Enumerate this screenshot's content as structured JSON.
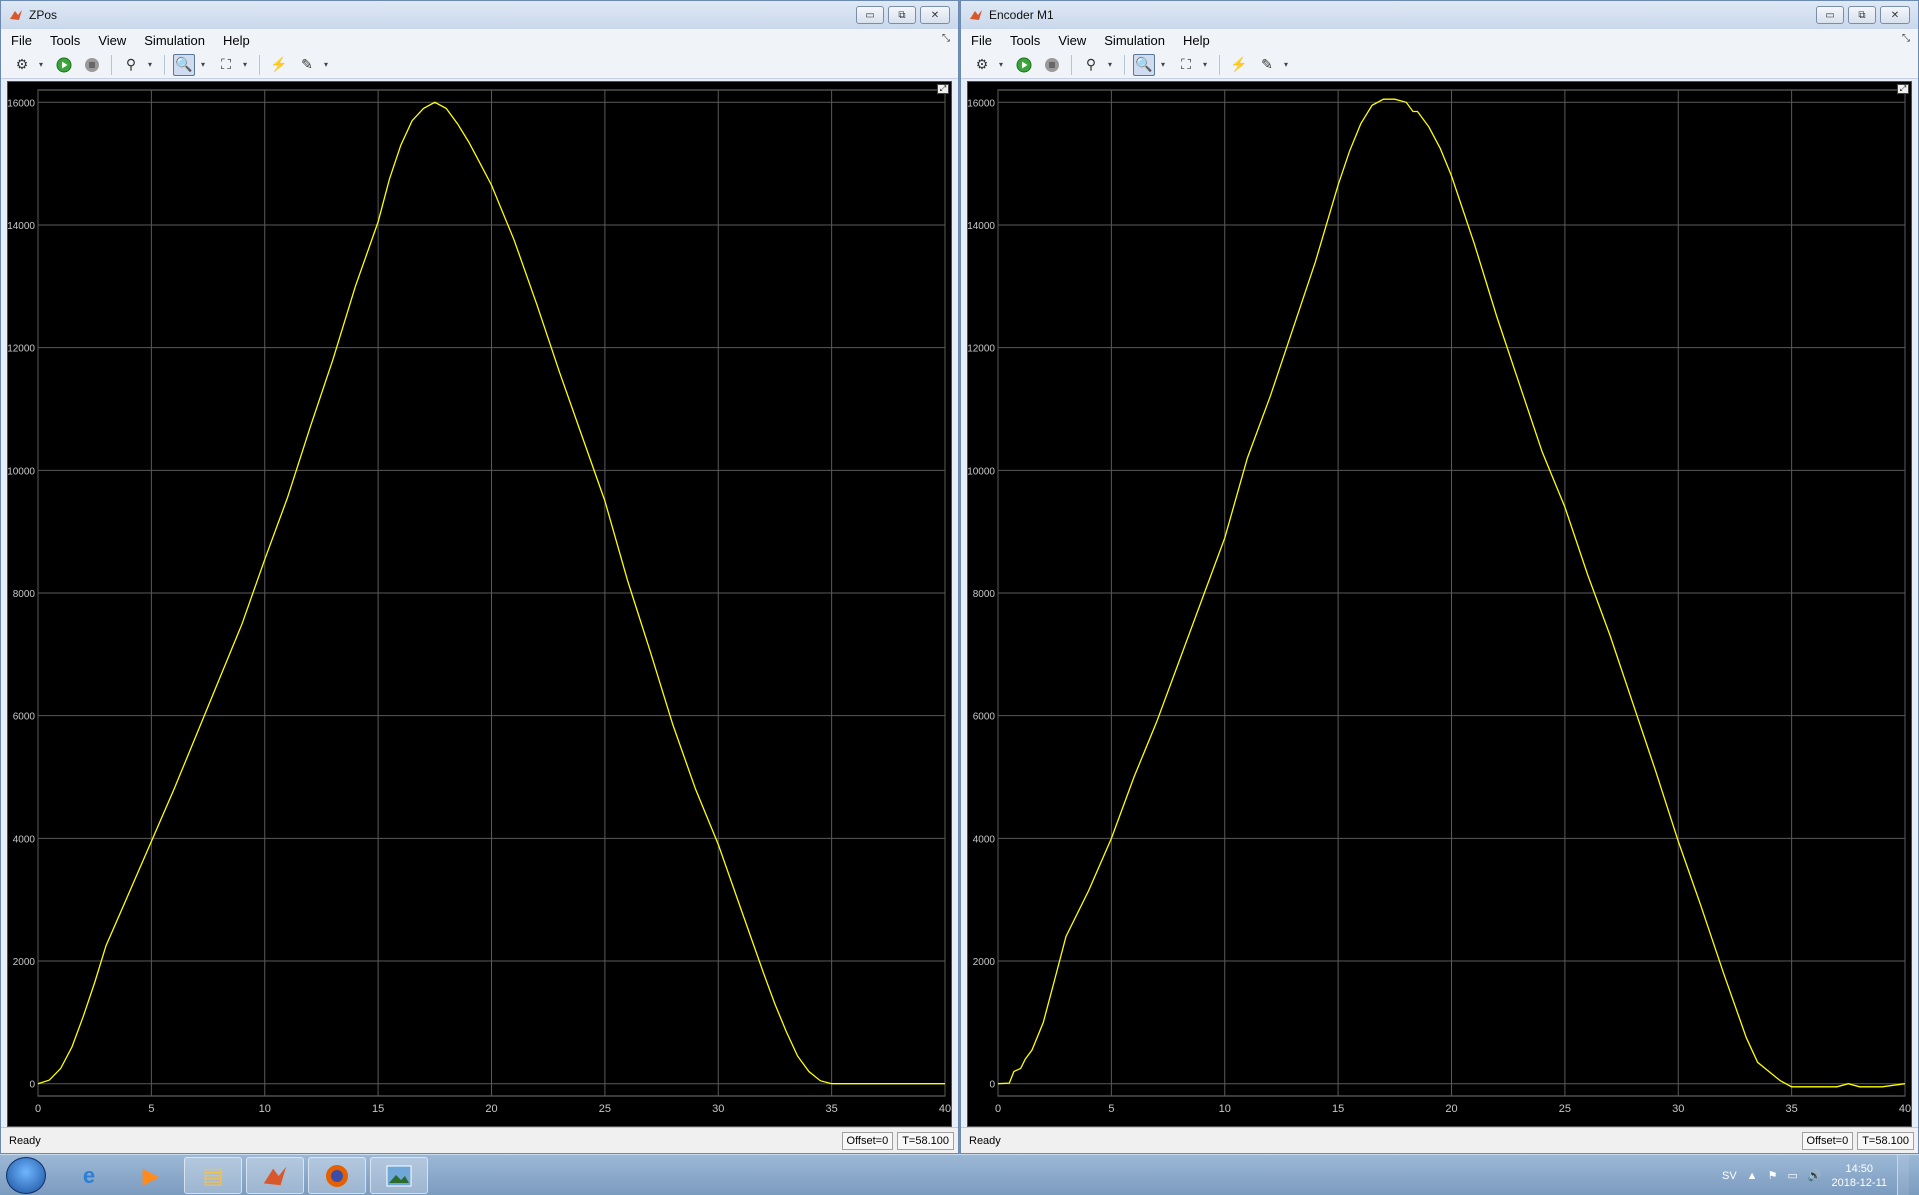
{
  "menu": [
    "File",
    "Tools",
    "View",
    "Simulation",
    "Help"
  ],
  "status": {
    "ready": "Ready",
    "offset": "Offset=0",
    "time": "T=58.100"
  },
  "plot_style": {
    "bg": "#000000",
    "grid": "#5a5a5a",
    "line": "#ffff00",
    "tick": "#c8c8c8",
    "axes_border": "#777777"
  },
  "windows": [
    {
      "title": "ZPos",
      "chart_data": {
        "type": "line",
        "xlim": [
          0,
          40
        ],
        "ylim": [
          -200,
          16200
        ],
        "xticks": [
          0,
          5,
          10,
          15,
          20,
          25,
          30,
          35,
          40
        ],
        "yticks": [
          0,
          2000,
          4000,
          6000,
          8000,
          10000,
          12000,
          14000,
          16000
        ],
        "grid": true,
        "series": [
          {
            "color": "#ffff00",
            "x": [
              0,
              0.5,
              1,
              1.5,
              2,
              2.5,
              3,
              4,
              5,
              6,
              7,
              8,
              9,
              10,
              11,
              12,
              13,
              14,
              15,
              15.5,
              16,
              16.5,
              17,
              17.5,
              18,
              18.5,
              19,
              19.5,
              20,
              21,
              22,
              23,
              24,
              25,
              26,
              27,
              28,
              29,
              30,
              31,
              32,
              32.5,
              33,
              33.5,
              34,
              34.5,
              35,
              36,
              37,
              38,
              39,
              40
            ],
            "y": [
              0,
              60,
              250,
              600,
              1100,
              1650,
              2250,
              3100,
              3950,
              4800,
              5700,
              6600,
              7500,
              8550,
              9550,
              10700,
              11800,
              13000,
              14050,
              14750,
              15300,
              15700,
              15900,
              16000,
              15900,
              15650,
              15350,
              15000,
              14650,
              13750,
              12700,
              11600,
              10550,
              9500,
              8200,
              7050,
              5850,
              4800,
              3900,
              2850,
              1800,
              1300,
              850,
              450,
              200,
              50,
              0,
              0,
              0,
              0,
              0,
              0
            ]
          }
        ]
      }
    },
    {
      "title": "Encoder M1",
      "chart_data": {
        "type": "line",
        "xlim": [
          0,
          40
        ],
        "ylim": [
          -200,
          16200
        ],
        "xticks": [
          0,
          5,
          10,
          15,
          20,
          25,
          30,
          35,
          40
        ],
        "yticks": [
          0,
          2000,
          4000,
          6000,
          8000,
          10000,
          12000,
          14000,
          16000
        ],
        "grid": true,
        "series": [
          {
            "color": "#ffff00",
            "x": [
              0,
              0.5,
              0.7,
              1,
              1.2,
              1.5,
              2,
              2.5,
              3,
              4,
              5,
              6,
              7,
              8,
              9,
              10,
              11,
              12,
              13,
              14,
              15,
              15.5,
              16,
              16.5,
              17,
              17.5,
              18,
              18.3,
              18.5,
              19,
              19.5,
              20,
              21,
              22,
              23,
              24,
              25,
              26,
              27,
              28,
              29,
              30,
              31,
              32,
              33,
              33.5,
              34,
              34.5,
              35,
              35.5,
              36,
              37,
              37.5,
              38,
              39,
              40
            ],
            "y": [
              0,
              10,
              200,
              250,
              400,
              550,
              1000,
              1700,
              2400,
              3150,
              4000,
              5000,
              5900,
              6900,
              7900,
              8900,
              10200,
              11200,
              12300,
              13400,
              14650,
              15200,
              15650,
              15950,
              16050,
              16050,
              16000,
              15850,
              15850,
              15600,
              15250,
              14800,
              13700,
              12500,
              11400,
              10300,
              9400,
              8300,
              7300,
              6200,
              5100,
              3950,
              2900,
              1800,
              750,
              350,
              200,
              50,
              -50,
              -50,
              -50,
              -50,
              0,
              -50,
              -50,
              0
            ]
          }
        ]
      }
    }
  ],
  "taskbar": {
    "tasks": [
      {
        "icon": "windows-start-icon"
      },
      {
        "icon": "internet-explorer-icon"
      },
      {
        "icon": "media-player-icon"
      },
      {
        "icon": "file-explorer-icon"
      },
      {
        "icon": "matlab-icon"
      },
      {
        "icon": "firefox-icon"
      },
      {
        "icon": "picture-viewer-icon"
      }
    ],
    "lang": "SV",
    "time": "14:50",
    "date": "2018-12-11"
  }
}
